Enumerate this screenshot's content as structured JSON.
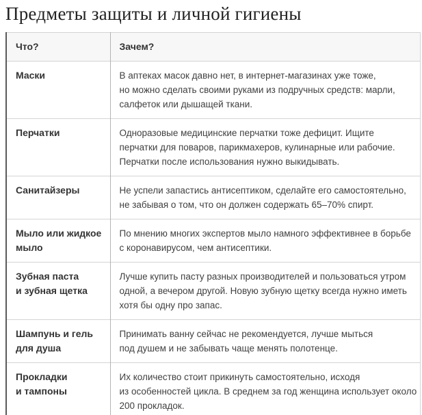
{
  "page": {
    "title": "Предметы защиты и личной гигиены"
  },
  "table": {
    "header": {
      "what": "Что?",
      "why": "Зачем?"
    },
    "rows": [
      {
        "what": "Маски",
        "why": "В аптеках масок давно нет, в интернет-магазинах уже тоже,\nно можно сделать своими руками из подручных средств: марли,\nсалфеток или дышащей ткани."
      },
      {
        "what": "Перчатки",
        "why": "Одноразовые медицинские перчатки тоже дефицит. Ищите\nперчатки для поваров, парикмахеров, кулинарные или рабочие.\nПерчатки после использования нужно выкидывать."
      },
      {
        "what": "Санитайзеры",
        "why": "Не успели запастись антисептиком, сделайте его самостоятельно,\nне забывая о том, что он должен содержать 65–70% спирт."
      },
      {
        "what": "Мыло или жидкое\nмыло",
        "why": "По мнению многих экспертов мыло намного эффективнее в борьбе\nс коронавирусом, чем антисептики."
      },
      {
        "what": "Зубная паста\nи зубная щетка",
        "why": "Лучше купить пасту разных производителей и пользоваться утром\nодной, а вечером другой. Новую зубную щетку всегда нужно иметь\nхотя бы одну про запас."
      },
      {
        "what": "Шампунь и гель\nдля душа",
        "why": "Принимать ванну сейчас не рекомендуется, лучше мыться\nпод душем и не забывать чаще менять полотенце."
      },
      {
        "what": "Прокладки\nи тампоны",
        "why": "Их количество стоит прикинуть самостоятельно, исходя\nиз особенностей цикла. В среднем за год женщина использует около\n200 прокладок."
      }
    ]
  },
  "colors": {
    "header_bg": "#f7f7f7",
    "border_light": "#d4d4d4",
    "border_column": "#b3b3b3",
    "border_left_dark": "#595959",
    "title_text": "#222222",
    "label_text": "#333333",
    "body_text": "#404040"
  }
}
